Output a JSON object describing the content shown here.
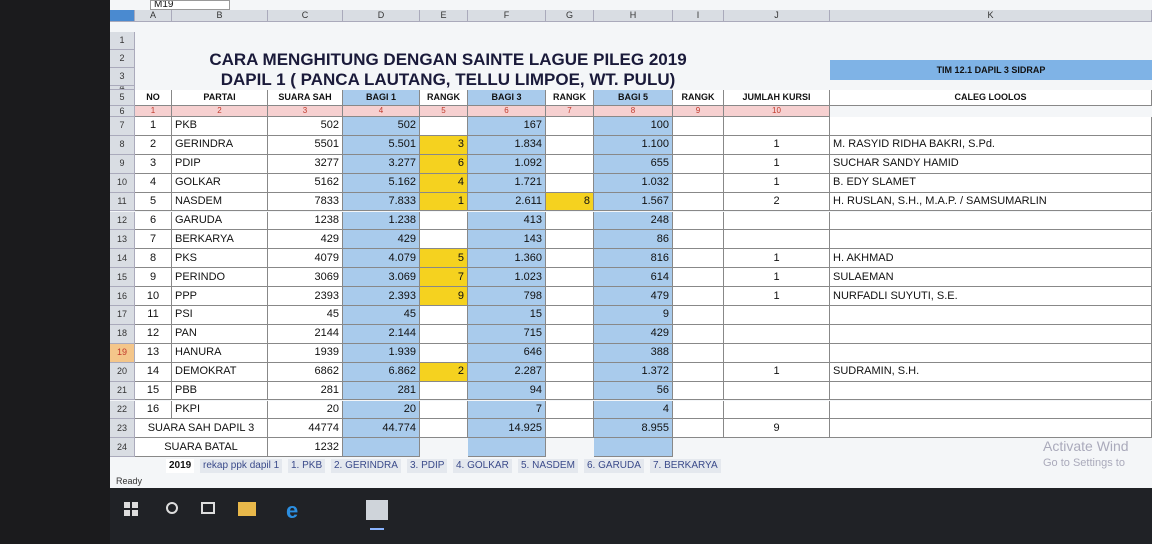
{
  "name_box": "M19",
  "columns": [
    "A",
    "B",
    "C",
    "D",
    "E",
    "F",
    "G",
    "H",
    "I",
    "J",
    "K"
  ],
  "row_numbers": [
    1,
    2,
    3,
    4,
    5,
    6,
    7,
    8,
    9,
    10,
    11,
    12,
    13,
    14,
    15,
    16,
    17,
    18,
    19,
    20,
    21,
    22,
    23,
    24
  ],
  "title": {
    "line1": "CARA MENGHITUNG DENGAN SAINTE LAGUE PILEG 2019",
    "line2": "DAPIL 1 ( PANCA LAUTANG, TELLU LIMPOE, WT. PULU)",
    "team": "TIM 12.1 DAPIL 3 SIDRAP"
  },
  "table": {
    "header": [
      "NO",
      "PARTAI",
      "SUARA SAH",
      "BAGI 1",
      "RANGK",
      "BAGI 3",
      "RANGK",
      "BAGI 5",
      "RANGK",
      "JUMLAH KURSI",
      "CALEG LOOLOS"
    ],
    "index_row": [
      1,
      2,
      3,
      4,
      5,
      6,
      7,
      8,
      9,
      10
    ],
    "rows": [
      [
        1,
        "PKB",
        502,
        "502",
        null,
        "167",
        null,
        "100",
        null,
        null,
        null
      ],
      [
        2,
        "GERINDRA",
        5501,
        "5.501",
        3,
        "1.834",
        null,
        "1.100",
        null,
        1,
        "M. RASYID RIDHA BAKRI, S.Pd."
      ],
      [
        3,
        "PDIP",
        3277,
        "3.277",
        6,
        "1.092",
        null,
        "655",
        null,
        1,
        "SUCHAR SANDY HAMID"
      ],
      [
        4,
        "GOLKAR",
        5162,
        "5.162",
        4,
        "1.721",
        null,
        "1.032",
        null,
        1,
        "B. EDY SLAMET"
      ],
      [
        5,
        "NASDEM",
        7833,
        "7.833",
        1,
        "2.611",
        8,
        "1.567",
        null,
        2,
        "H. RUSLAN, S.H., M.A.P. / SAMSUMARLIN"
      ],
      [
        6,
        "GARUDA",
        1238,
        "1.238",
        null,
        "413",
        null,
        "248",
        null,
        null,
        null
      ],
      [
        7,
        "BERKARYA",
        429,
        "429",
        null,
        "143",
        null,
        "86",
        null,
        null,
        null
      ],
      [
        8,
        "PKS",
        4079,
        "4.079",
        5,
        "1.360",
        null,
        "816",
        null,
        1,
        "H. AKHMAD"
      ],
      [
        9,
        "PERINDO",
        3069,
        "3.069",
        7,
        "1.023",
        null,
        "614",
        null,
        1,
        "SULAEMAN"
      ],
      [
        10,
        "PPP",
        2393,
        "2.393",
        9,
        "798",
        null,
        "479",
        null,
        1,
        "NURFADLI SUYUTI, S.E."
      ],
      [
        11,
        "PSI",
        45,
        "45",
        null,
        "15",
        null,
        "9",
        null,
        null,
        null
      ],
      [
        12,
        "PAN",
        2144,
        "2.144",
        null,
        "715",
        null,
        "429",
        null,
        null,
        null
      ],
      [
        13,
        "HANURA",
        1939,
        "1.939",
        null,
        "646",
        null,
        "388",
        null,
        null,
        null
      ],
      [
        14,
        "DEMOKRAT",
        6862,
        "6.862",
        2,
        "2.287",
        null,
        "1.372",
        null,
        1,
        "SUDRAMIN, S.H."
      ],
      [
        15,
        "PBB",
        281,
        "281",
        null,
        "94",
        null,
        "56",
        null,
        null,
        null
      ],
      [
        16,
        "PKPI",
        20,
        "20",
        null,
        "7",
        null,
        "4",
        null,
        null,
        null
      ]
    ],
    "total": [
      "SUARA SAH DAPIL 3",
      44774,
      "44.774",
      null,
      "14.925",
      null,
      "8.955",
      null,
      9
    ],
    "invalid": [
      "SUARA BATAL",
      1232
    ]
  },
  "sheet_tabs": [
    "2019",
    "rekap ppk dapil 1",
    "1. PKB",
    "2. GERINDRA",
    "3. PDIP",
    "4. GOLKAR",
    "5. NASDEM",
    "6. GARUDA",
    "7. BERKARYA"
  ],
  "status": "Ready",
  "watermark": {
    "line1": "Activate Wind",
    "line2": "Go to Settings to"
  }
}
